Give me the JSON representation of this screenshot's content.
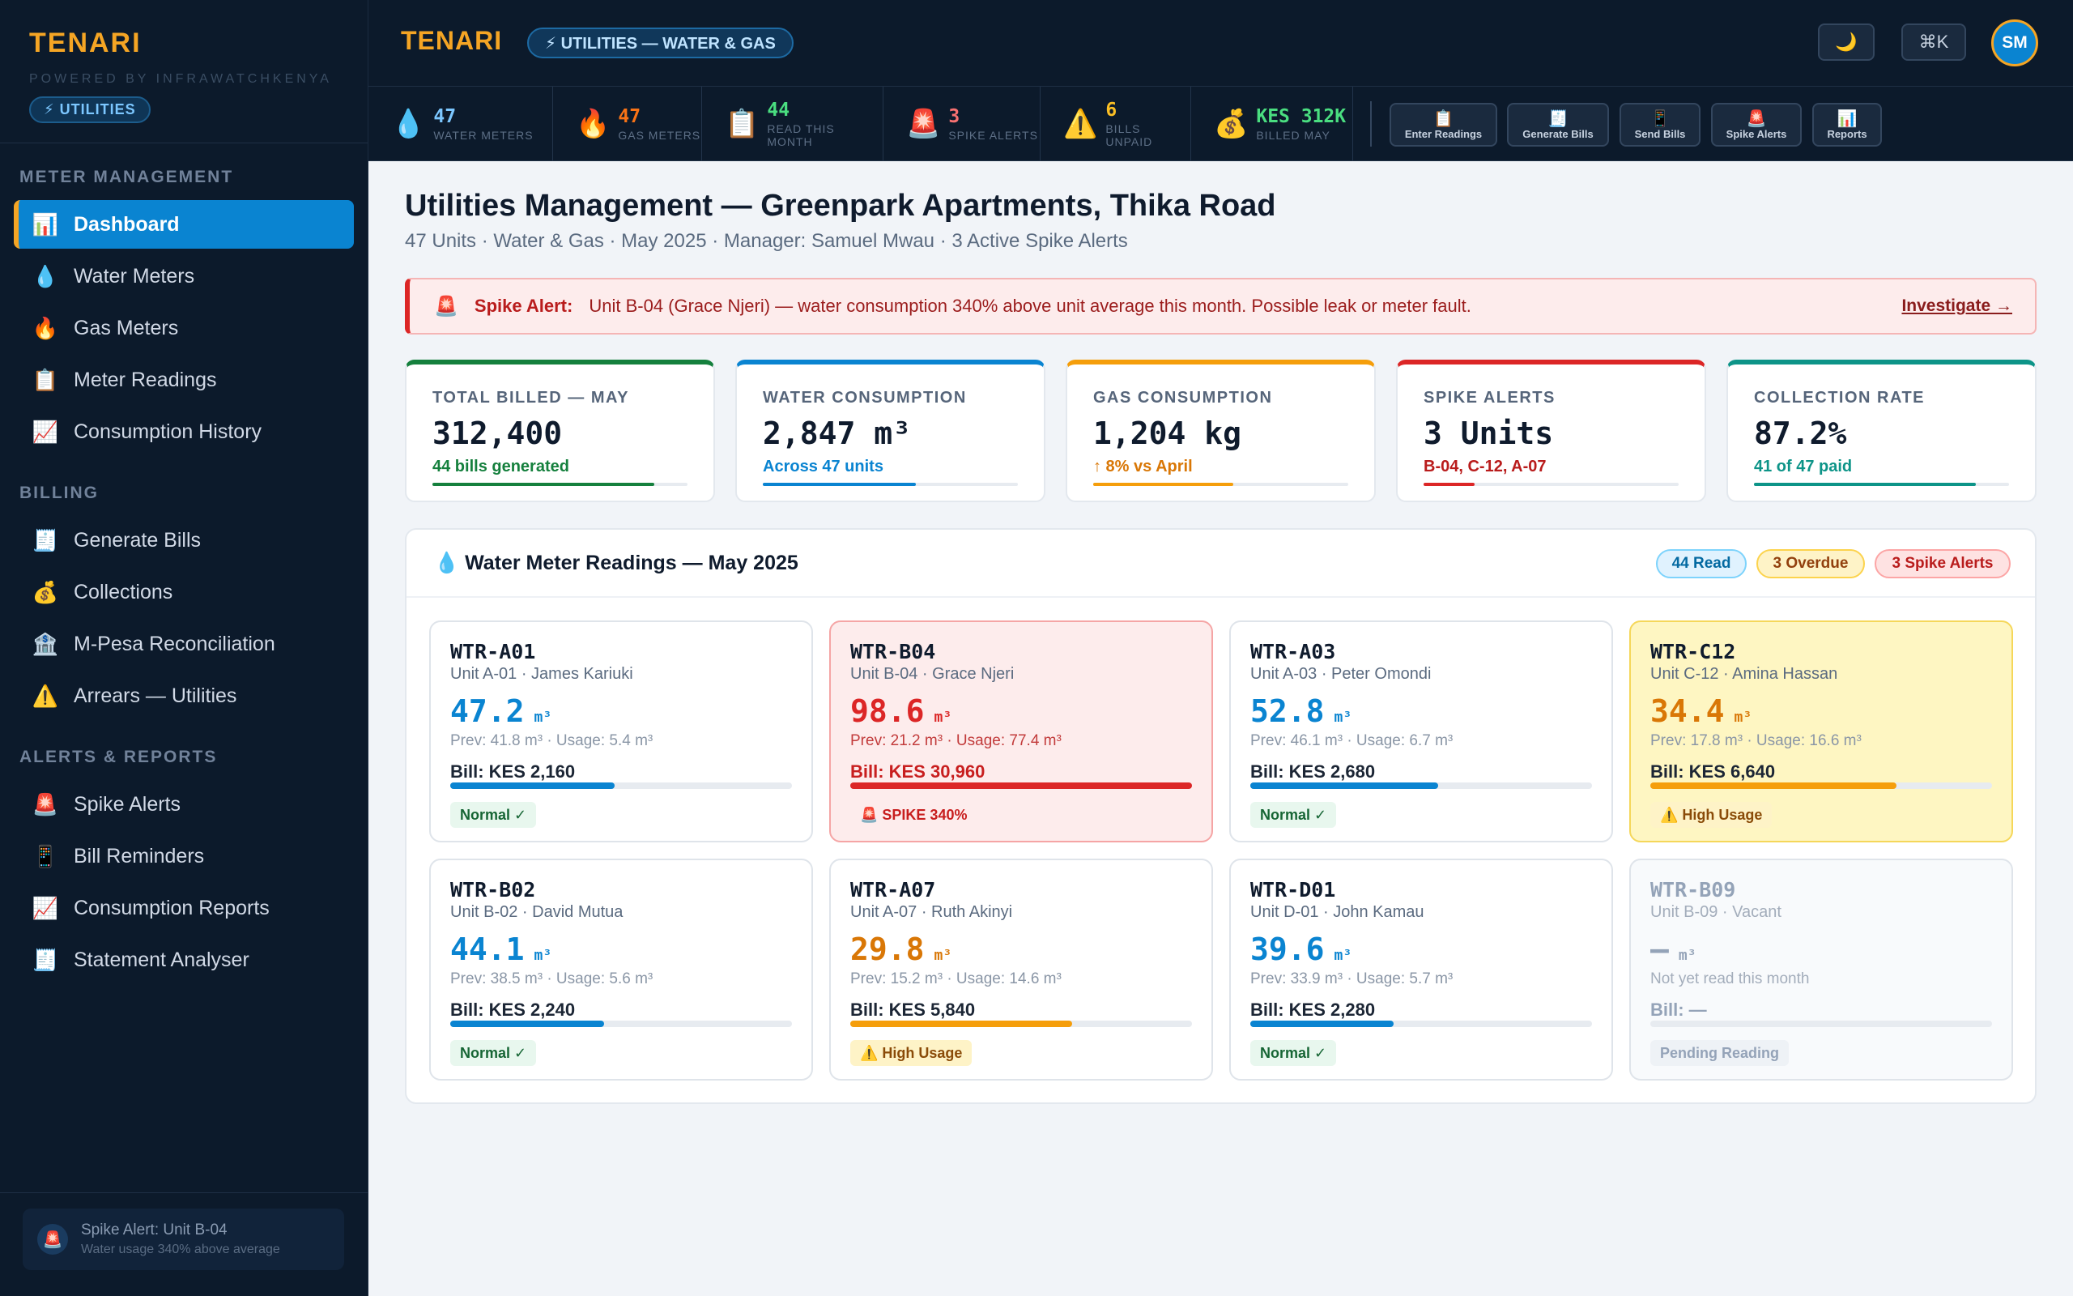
{
  "sidebar": {
    "brand": "TENARI",
    "powered": "POWERED BY INFRAWATCHKENYA",
    "badge": "⚡ UTILITIES",
    "sections": [
      {
        "title": "METER MANAGEMENT",
        "items": [
          {
            "icon": "📊",
            "label": "Dashboard",
            "active": true
          },
          {
            "icon": "💧",
            "label": "Water Meters"
          },
          {
            "icon": "🔥",
            "label": "Gas Meters"
          },
          {
            "icon": "📋",
            "label": "Meter Readings"
          },
          {
            "icon": "📈",
            "label": "Consumption History"
          }
        ]
      },
      {
        "title": "BILLING",
        "items": [
          {
            "icon": "🧾",
            "label": "Generate Bills"
          },
          {
            "icon": "💰",
            "label": "Collections"
          },
          {
            "icon": "🏦",
            "label": "M-Pesa Reconciliation"
          },
          {
            "icon": "⚠️",
            "label": "Arrears — Utilities"
          }
        ]
      },
      {
        "title": "ALERTS & REPORTS",
        "items": [
          {
            "icon": "🚨",
            "label": "Spike Alerts"
          },
          {
            "icon": "📱",
            "label": "Bill Reminders"
          },
          {
            "icon": "📈",
            "label": "Consumption Reports"
          },
          {
            "icon": "🧾",
            "label": "Statement Analyser"
          }
        ]
      }
    ],
    "alert": {
      "icon": "🚨",
      "title": "Spike Alert: Unit B-04",
      "sub": "Water usage 340% above average"
    }
  },
  "topbar": {
    "brand": "TENARI",
    "pill": "⚡ UTILITIES — WATER & GAS",
    "theme_icon": "🌙",
    "shortcut": "⌘K",
    "avatar": "SM"
  },
  "stats": [
    {
      "icon": "💧",
      "value": "47",
      "label": "WATER METERS",
      "color": "#7cc7ff"
    },
    {
      "icon": "🔥",
      "value": "47",
      "label": "GAS METERS",
      "color": "#f97316"
    },
    {
      "icon": "📋",
      "value": "44",
      "label": "READ THIS MONTH",
      "color": "#4ade80"
    },
    {
      "icon": "🚨",
      "value": "3",
      "label": "SPIKE ALERTS",
      "color": "#f87171"
    },
    {
      "icon": "⚠️",
      "value": "6",
      "label": "BILLS UNPAID",
      "color": "#fbbf24"
    },
    {
      "icon": "💰",
      "value": "KES 312K",
      "label": "BILLED MAY",
      "color": "#4ade80"
    }
  ],
  "quick_actions": [
    {
      "icon": "📋",
      "label": "Enter Readings"
    },
    {
      "icon": "🧾",
      "label": "Generate Bills"
    },
    {
      "icon": "📱",
      "label": "Send Bills"
    },
    {
      "icon": "🚨",
      "label": "Spike Alerts"
    },
    {
      "icon": "📊",
      "label": "Reports"
    }
  ],
  "page": {
    "title": "Utilities Management — Greenpark Apartments, Thika Road",
    "subtitle": "47 Units · Water & Gas · May 2025 · Manager: Samuel Mwau · 3 Active Spike Alerts"
  },
  "banner": {
    "icon": "🚨",
    "label": "Spike Alert:",
    "text": "Unit B-04 (Grace Njeri) — water consumption 340% above unit average this month. Possible leak or meter fault.",
    "link": "Investigate →"
  },
  "kpis": [
    {
      "label": "TOTAL BILLED — MAY",
      "value": "312,400",
      "sub": "44 bills generated",
      "color": "#15803d",
      "subcolor": "#15803d",
      "progress": 0.87
    },
    {
      "label": "WATER CONSUMPTION",
      "value": "2,847 m³",
      "sub": "Across 47 units",
      "color": "#0a84d1",
      "subcolor": "#0a84d1",
      "progress": 0.6
    },
    {
      "label": "GAS CONSUMPTION",
      "value": "1,204 kg",
      "sub": "↑ 8% vs April",
      "color": "#f59e0b",
      "subcolor": "#d97706",
      "progress": 0.55
    },
    {
      "label": "SPIKE ALERTS",
      "value": "3 Units",
      "sub": "B-04, C-12, A-07",
      "color": "#dc2626",
      "subcolor": "#b91c1c",
      "progress": 0.2
    },
    {
      "label": "COLLECTION RATE",
      "value": "87.2%",
      "sub": "41 of 47 paid",
      "color": "#0d9488",
      "subcolor": "#0d9488",
      "progress": 0.87
    }
  ],
  "panel": {
    "title": "💧 Water Meter Readings — May 2025",
    "chips": [
      {
        "label": "44 Read",
        "bg": "#e0f2fe",
        "border": "#7dd3fc",
        "color": "#0369a1"
      },
      {
        "label": "3 Overdue",
        "bg": "#fef3c7",
        "border": "#fcd34d",
        "color": "#92400e"
      },
      {
        "label": "3 Spike Alerts",
        "bg": "#fee2e2",
        "border": "#fca5a5",
        "color": "#b91c1c"
      }
    ]
  },
  "meters": [
    {
      "id": "WTR-A01",
      "unit": "Unit A-01 · James Kariuki",
      "reading": "47.2",
      "uom": "m³",
      "prev": "Prev: 41.8 m³ · Usage: 5.4 m³",
      "bill": "Bill: KES 2,160",
      "status": "Normal ✓",
      "kind": "normal",
      "progress": 0.48
    },
    {
      "id": "WTR-B04",
      "unit": "Unit B-04 · Grace Njeri",
      "reading": "98.6",
      "uom": "m³",
      "prev": "Prev: 21.2 m³ · Usage: 77.4 m³",
      "bill": "Bill: KES 30,960",
      "status": "🚨 SPIKE 340%",
      "kind": "spike",
      "progress": 1.0
    },
    {
      "id": "WTR-A03",
      "unit": "Unit A-03 · Peter Omondi",
      "reading": "52.8",
      "uom": "m³",
      "prev": "Prev: 46.1 m³ · Usage: 6.7 m³",
      "bill": "Bill: KES 2,680",
      "status": "Normal ✓",
      "kind": "normal",
      "progress": 0.55
    },
    {
      "id": "WTR-C12",
      "unit": "Unit C-12 · Amina Hassan",
      "reading": "34.4",
      "uom": "m³",
      "prev": "Prev: 17.8 m³ · Usage: 16.6 m³",
      "bill": "Bill: KES 6,640",
      "status": "⚠️ High Usage",
      "kind": "high-hl",
      "progress": 0.72
    },
    {
      "id": "WTR-B02",
      "unit": "Unit B-02 · David Mutua",
      "reading": "44.1",
      "uom": "m³",
      "prev": "Prev: 38.5 m³ · Usage: 5.6 m³",
      "bill": "Bill: KES 2,240",
      "status": "Normal ✓",
      "kind": "normal",
      "progress": 0.45
    },
    {
      "id": "WTR-A07",
      "unit": "Unit A-07 · Ruth Akinyi",
      "reading": "29.8",
      "uom": "m³",
      "prev": "Prev: 15.2 m³ · Usage: 14.6 m³",
      "bill": "Bill: KES 5,840",
      "status": "⚠️ High Usage",
      "kind": "high",
      "progress": 0.65
    },
    {
      "id": "WTR-D01",
      "unit": "Unit D-01 · John Kamau",
      "reading": "39.6",
      "uom": "m³",
      "prev": "Prev: 33.9 m³ · Usage: 5.7 m³",
      "bill": "Bill: KES 2,280",
      "status": "Normal ✓",
      "kind": "normal",
      "progress": 0.42
    },
    {
      "id": "WTR-B09",
      "unit": "Unit B-09 · Vacant",
      "reading": "—",
      "uom": "m³",
      "prev": "Not yet read this month",
      "bill": "Bill: —",
      "status": "Pending Reading",
      "kind": "pending",
      "progress": 0
    }
  ]
}
